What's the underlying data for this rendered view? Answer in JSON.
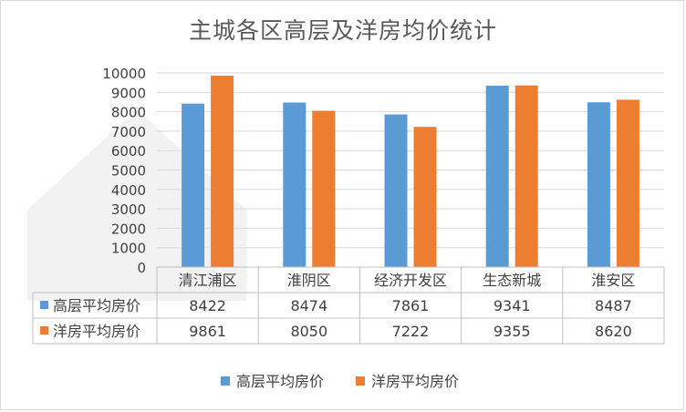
{
  "chart_data": {
    "type": "bar",
    "title": "主城各区高层及洋房均价统计",
    "categories": [
      "清江浦区",
      "淮阴区",
      "经济开发区",
      "生态新城",
      "淮安区"
    ],
    "series": [
      {
        "name": "高层平均房价",
        "color": "#5b9bd5",
        "values": [
          8422,
          8474,
          7861,
          9341,
          8487
        ]
      },
      {
        "name": "洋房平均房价",
        "color": "#ed7d31",
        "values": [
          9861,
          8050,
          7222,
          9355,
          8620
        ]
      }
    ],
    "ylim": [
      0,
      10000
    ],
    "yticks": [
      0,
      1000,
      2000,
      3000,
      4000,
      5000,
      6000,
      7000,
      8000,
      9000,
      10000
    ],
    "grid": true,
    "data_table": true,
    "legend": "bottom"
  }
}
